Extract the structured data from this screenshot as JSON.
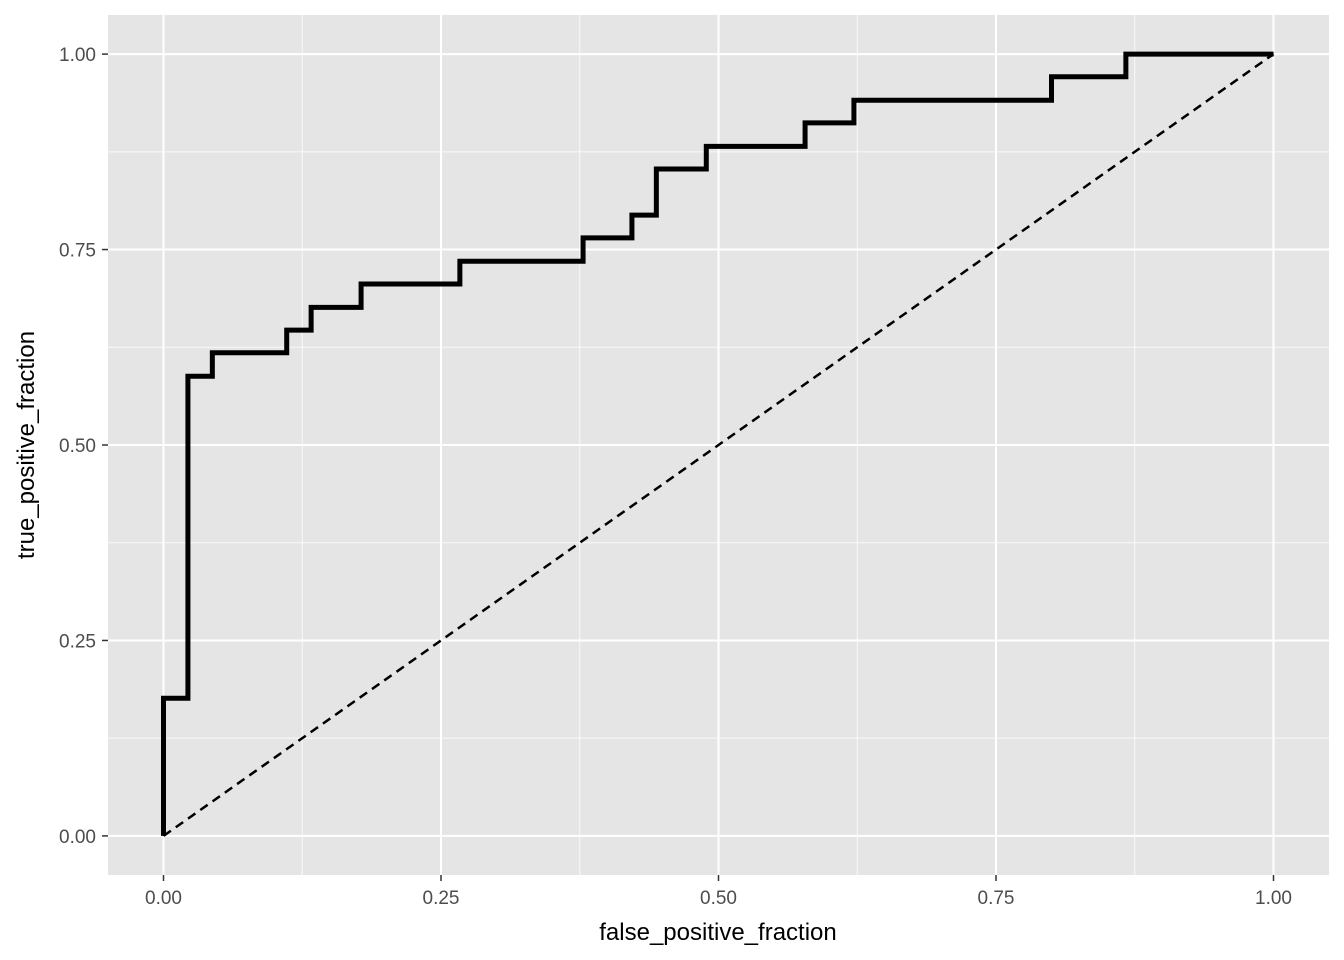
{
  "chart_data": {
    "type": "line",
    "title": "",
    "xlabel": "false_positive_fraction",
    "ylabel": "true_positive_fraction",
    "xlim": [
      -0.05,
      1.05
    ],
    "ylim": [
      -0.05,
      1.05
    ],
    "x_ticks": [
      {
        "value": 0.0,
        "label": "0.00"
      },
      {
        "value": 0.25,
        "label": "0.25"
      },
      {
        "value": 0.5,
        "label": "0.50"
      },
      {
        "value": 0.75,
        "label": "0.75"
      },
      {
        "value": 1.0,
        "label": "1.00"
      }
    ],
    "y_ticks": [
      {
        "value": 0.0,
        "label": "0.00"
      },
      {
        "value": 0.25,
        "label": "0.25"
      },
      {
        "value": 0.5,
        "label": "0.50"
      },
      {
        "value": 0.75,
        "label": "0.75"
      },
      {
        "value": 1.0,
        "label": "1.00"
      }
    ],
    "grid": true,
    "series": [
      {
        "style": "solid-step",
        "color": "#000000",
        "points": [
          [
            0.0,
            0.0
          ],
          [
            0.0,
            0.176
          ],
          [
            0.022,
            0.176
          ],
          [
            0.022,
            0.588
          ],
          [
            0.044,
            0.588
          ],
          [
            0.044,
            0.618
          ],
          [
            0.111,
            0.618
          ],
          [
            0.111,
            0.647
          ],
          [
            0.133,
            0.647
          ],
          [
            0.133,
            0.676
          ],
          [
            0.178,
            0.676
          ],
          [
            0.178,
            0.706
          ],
          [
            0.267,
            0.706
          ],
          [
            0.267,
            0.735
          ],
          [
            0.378,
            0.735
          ],
          [
            0.378,
            0.765
          ],
          [
            0.422,
            0.765
          ],
          [
            0.422,
            0.794
          ],
          [
            0.444,
            0.794
          ],
          [
            0.444,
            0.853
          ],
          [
            0.489,
            0.853
          ],
          [
            0.489,
            0.882
          ],
          [
            0.578,
            0.882
          ],
          [
            0.578,
            0.912
          ],
          [
            0.622,
            0.912
          ],
          [
            0.622,
            0.941
          ],
          [
            0.8,
            0.941
          ],
          [
            0.8,
            0.971
          ],
          [
            0.867,
            0.971
          ],
          [
            0.867,
            1.0
          ],
          [
            1.0,
            1.0
          ]
        ]
      },
      {
        "style": "dashed",
        "color": "#000000",
        "points": [
          [
            0.0,
            0.0
          ],
          [
            1.0,
            1.0
          ]
        ]
      }
    ],
    "colors": {
      "panel": "#e5e5e5",
      "grid_major": "#ffffff",
      "grid_minor": "#f2f2f2",
      "tick": "#333333"
    }
  }
}
